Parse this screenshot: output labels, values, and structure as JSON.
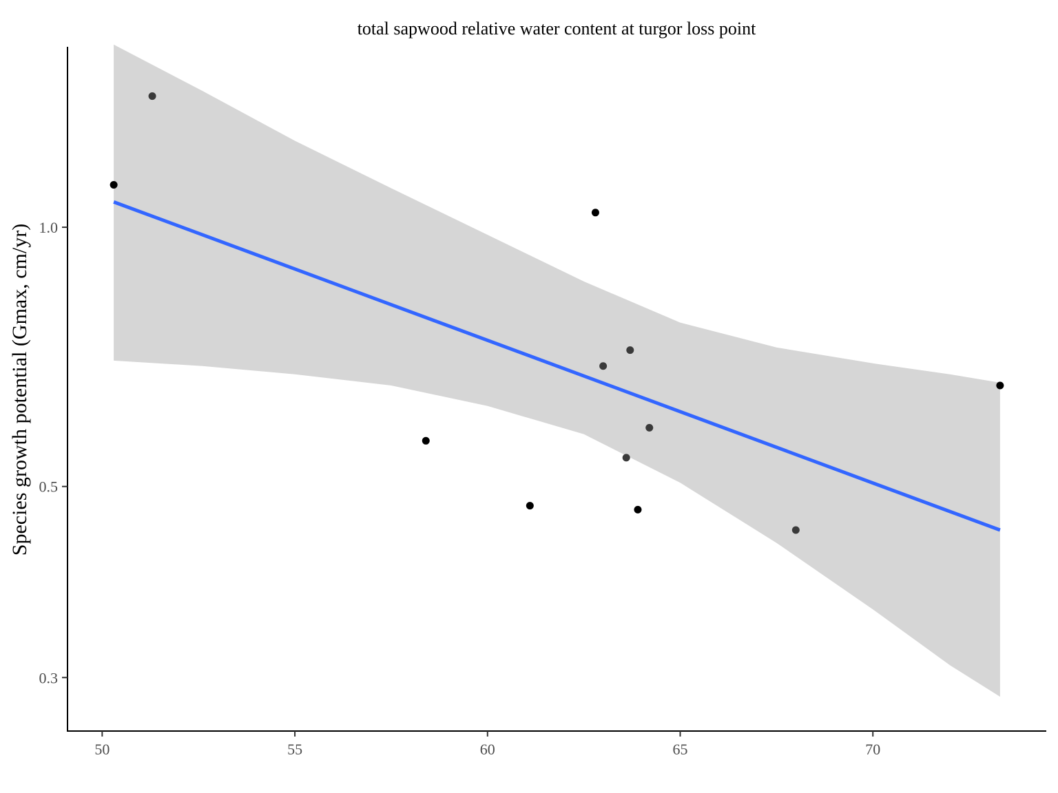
{
  "chart_data": {
    "type": "scatter",
    "title": "total sapwood relative water content at turgor loss point",
    "xlabel": "",
    "ylabel": "Species growth potential (Gmax, cm/yr)",
    "x_scale": "linear",
    "y_scale": "log",
    "xlim": [
      49.1,
      74.5
    ],
    "ylim": [
      0.26,
      1.62
    ],
    "x_ticks": [
      50,
      55,
      60,
      65,
      70
    ],
    "x_tick_labels": [
      "50",
      "55",
      "60",
      "65",
      "70"
    ],
    "y_ticks": [
      0.3,
      0.5,
      1.0
    ],
    "y_tick_labels": [
      "0.3",
      "0.5",
      "1.0"
    ],
    "grid": false,
    "points": [
      {
        "x": 51.3,
        "y": 1.42,
        "color": "#3a3a3a"
      },
      {
        "x": 50.3,
        "y": 1.12,
        "color": "#000000"
      },
      {
        "x": 62.8,
        "y": 1.04,
        "color": "#000000"
      },
      {
        "x": 63.7,
        "y": 0.72,
        "color": "#3a3a3a"
      },
      {
        "x": 63.0,
        "y": 0.69,
        "color": "#3a3a3a"
      },
      {
        "x": 73.3,
        "y": 0.655,
        "color": "#000000"
      },
      {
        "x": 64.2,
        "y": 0.585,
        "color": "#3a3a3a"
      },
      {
        "x": 58.4,
        "y": 0.565,
        "color": "#000000"
      },
      {
        "x": 63.6,
        "y": 0.54,
        "color": "#3a3a3a"
      },
      {
        "x": 61.1,
        "y": 0.475,
        "color": "#000000"
      },
      {
        "x": 63.9,
        "y": 0.47,
        "color": "#000000"
      },
      {
        "x": 68.0,
        "y": 0.445,
        "color": "#3a3a3a"
      }
    ],
    "fit_line": {
      "x": [
        50.3,
        73.3
      ],
      "y": [
        1.07,
        0.445
      ],
      "color": "#3366ff"
    },
    "confidence_band": {
      "color": "#d6d6d6",
      "x": [
        50.3,
        52.6,
        55.0,
        57.5,
        60.0,
        62.5,
        65.0,
        67.5,
        70.0,
        72.0,
        73.3
      ],
      "upper": [
        1.63,
        1.44,
        1.26,
        1.11,
        0.98,
        0.865,
        0.775,
        0.725,
        0.695,
        0.675,
        0.66
      ],
      "lower": [
        0.7,
        0.69,
        0.675,
        0.655,
        0.62,
        0.575,
        0.505,
        0.43,
        0.36,
        0.31,
        0.285
      ]
    }
  }
}
